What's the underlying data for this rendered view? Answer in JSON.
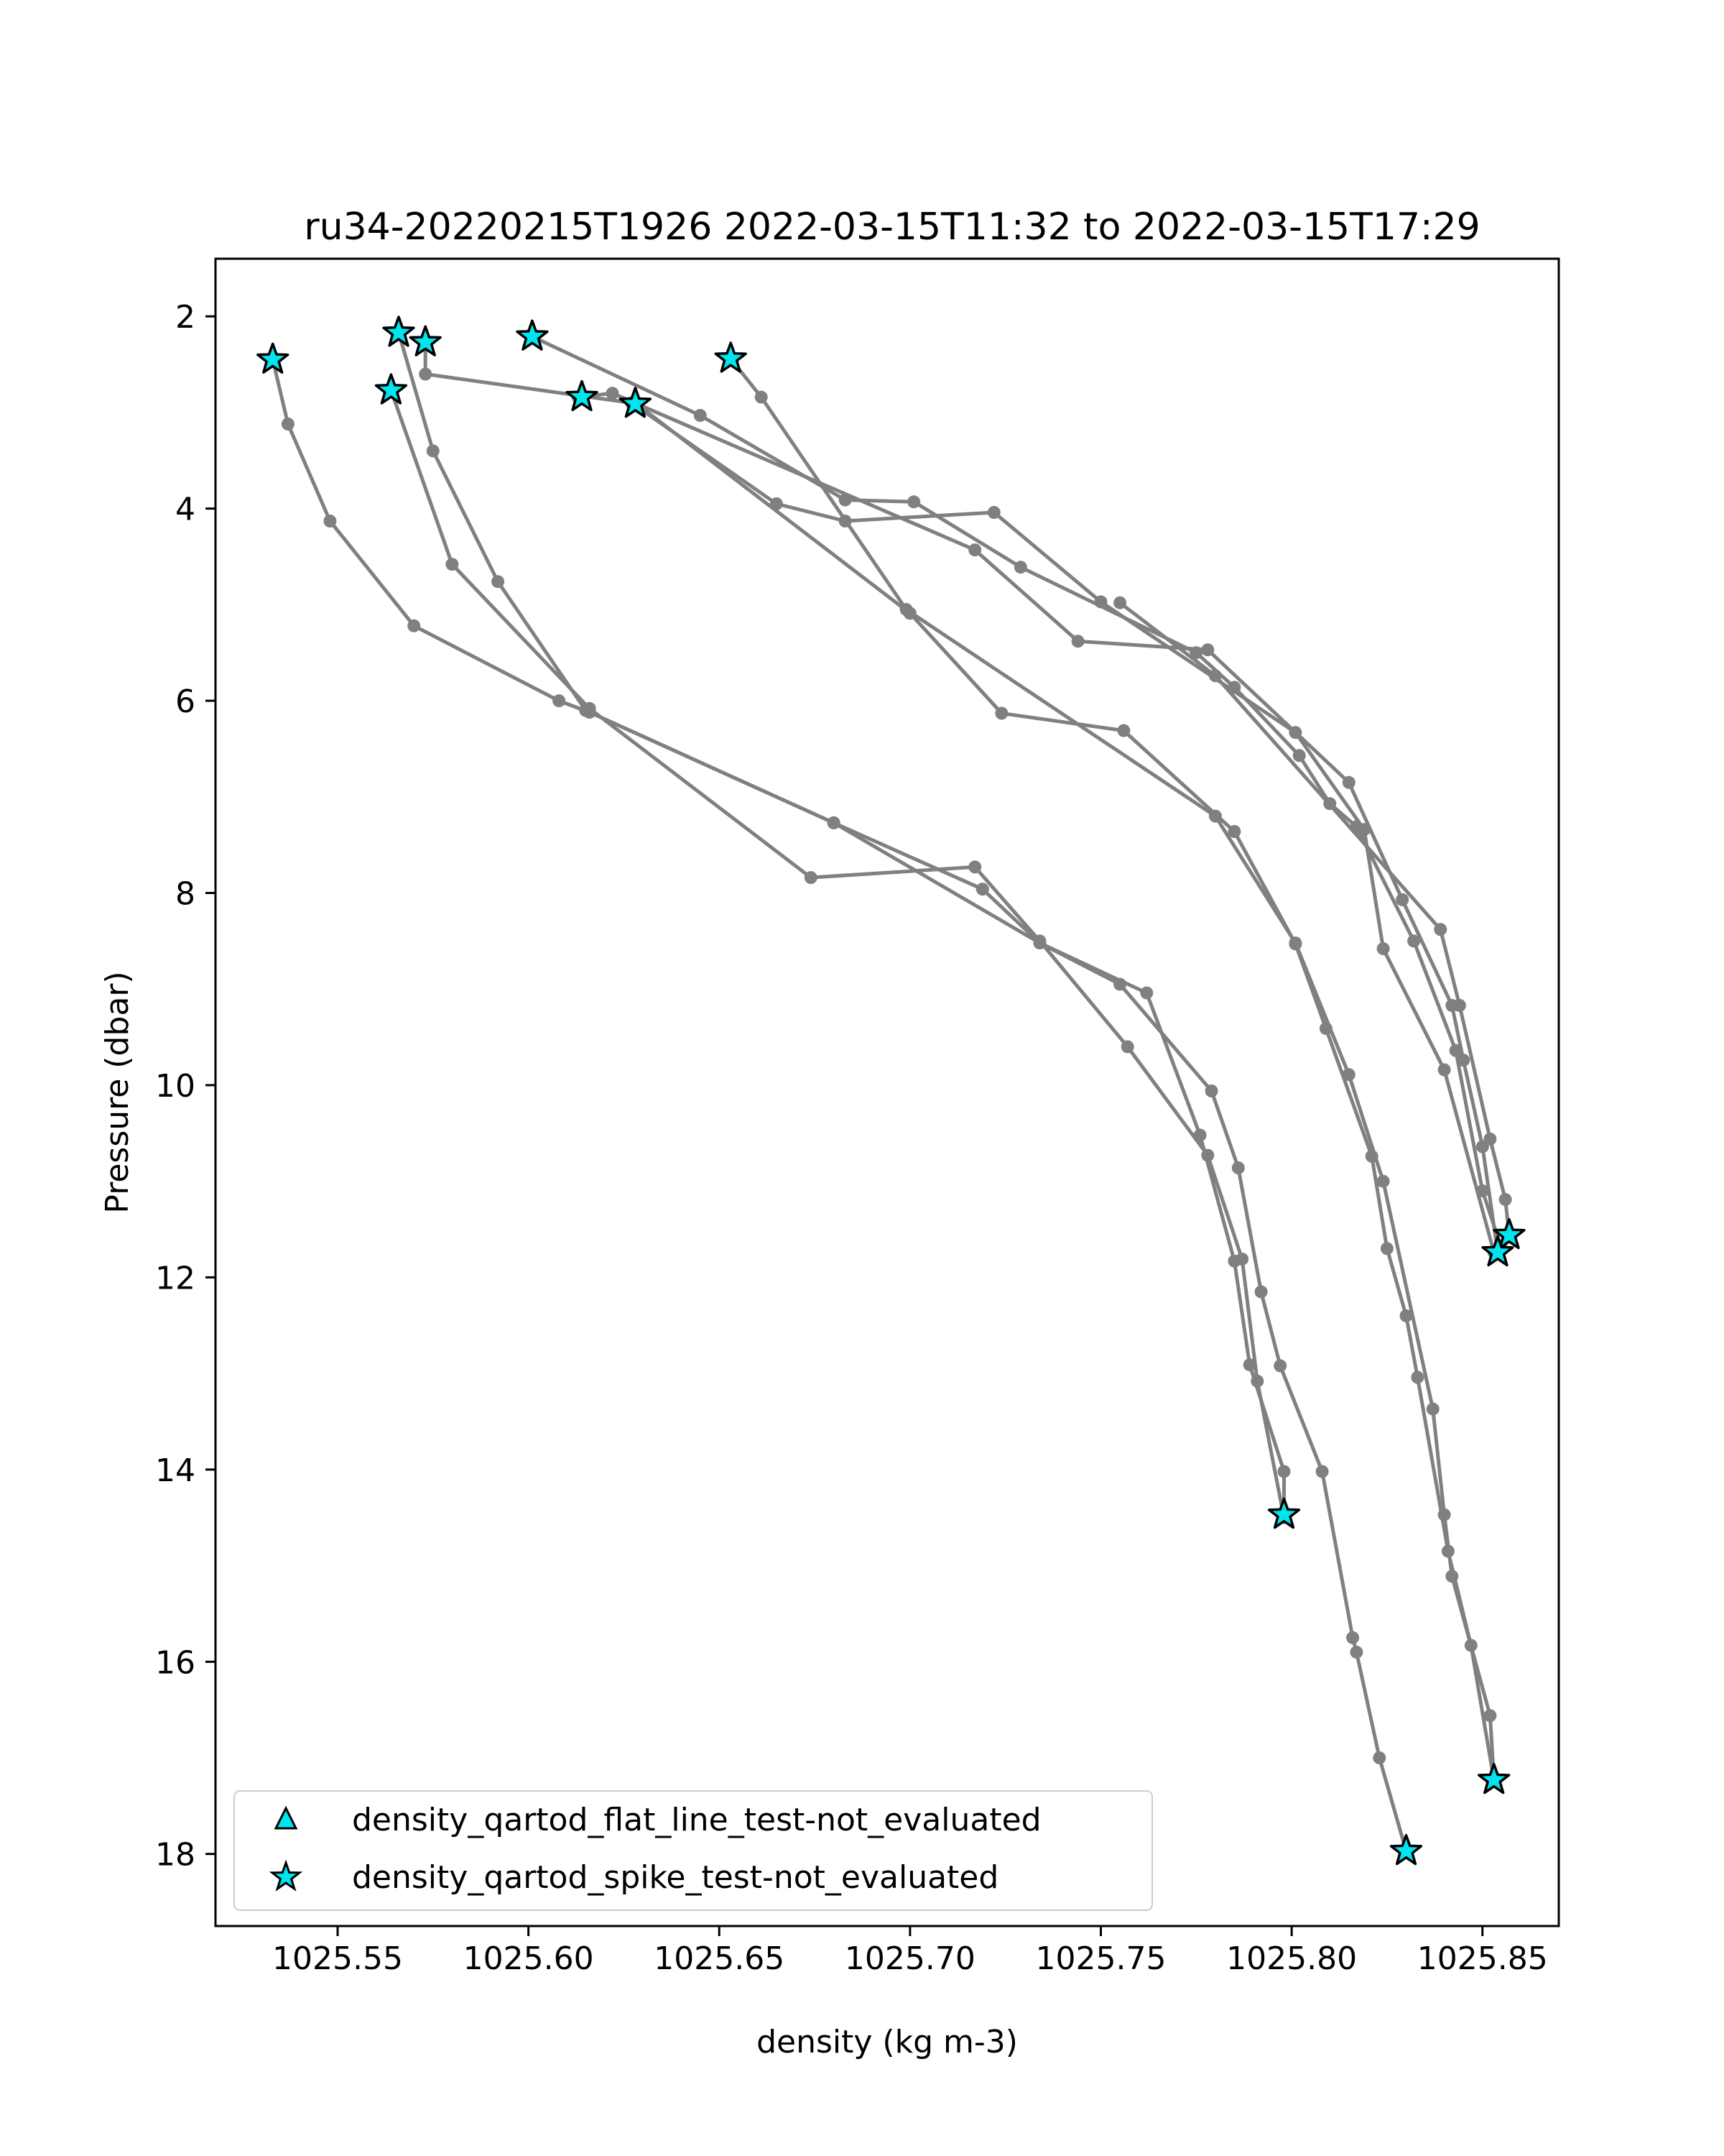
{
  "chart_data": {
    "type": "line",
    "title": "ru34-20220215T1926 2022-03-15T11:32 to 2022-03-15T17:29",
    "xlabel": "density (kg m-3)",
    "ylabel": "Pressure (dbar)",
    "xlim": [
      1025.518,
      1025.87
    ],
    "ylim": [
      18.75,
      1.4
    ],
    "y_inverted": true,
    "xticks": [
      1025.55,
      1025.6,
      1025.65,
      1025.7,
      1025.75,
      1025.8,
      1025.85
    ],
    "xtick_labels": [
      "1025.55",
      "1025.60",
      "1025.65",
      "1025.70",
      "1025.75",
      "1025.80",
      "1025.85"
    ],
    "yticks": [
      2,
      4,
      6,
      8,
      10,
      12,
      14,
      16,
      18
    ],
    "ytick_labels": [
      "2",
      "4",
      "6",
      "8",
      "10",
      "12",
      "14",
      "16",
      "18"
    ],
    "grid": false,
    "line_color": "#808080",
    "marker_fill": "#00e5ee",
    "legend": {
      "placement": "lower-left",
      "entries": [
        {
          "label": "density_qartod_flat_line_test-not_evaluated",
          "marker": "triangle",
          "color": "#00e5ee"
        },
        {
          "label": "density_qartod_spike_test-not_evaluated",
          "marker": "star",
          "color": "#00e5ee"
        }
      ]
    },
    "profiles": [
      {
        "points": [
          [
            1025.533,
            2.45
          ],
          [
            1025.537,
            3.12
          ],
          [
            1025.548,
            4.13
          ],
          [
            1025.57,
            5.22
          ],
          [
            1025.608,
            6.0
          ],
          [
            1025.616,
            6.12
          ],
          [
            1025.68,
            7.27
          ],
          [
            1025.719,
            7.96
          ],
          [
            1025.734,
            8.52
          ],
          [
            1025.762,
            9.04
          ],
          [
            1025.776,
            10.52
          ],
          [
            1025.785,
            11.83
          ],
          [
            1025.789,
            12.91
          ],
          [
            1025.798,
            14.02
          ],
          [
            1025.798,
            14.47
          ]
        ]
      },
      {
        "points": [
          [
            1025.564,
            2.77
          ],
          [
            1025.58,
            4.58
          ],
          [
            1025.616,
            6.08
          ],
          [
            1025.674,
            7.84
          ],
          [
            1025.717,
            7.73
          ],
          [
            1025.734,
            8.5
          ],
          [
            1025.757,
            9.6
          ],
          [
            1025.778,
            10.73
          ],
          [
            1025.787,
            11.81
          ],
          [
            1025.791,
            13.08
          ],
          [
            1025.798,
            14.5
          ]
        ]
      },
      {
        "points": [
          [
            1025.566,
            2.17
          ],
          [
            1025.575,
            3.4
          ],
          [
            1025.592,
            4.76
          ],
          [
            1025.615,
            6.1
          ],
          [
            1025.68,
            7.27
          ],
          [
            1025.734,
            8.52
          ],
          [
            1025.755,
            8.95
          ],
          [
            1025.779,
            10.06
          ],
          [
            1025.786,
            10.86
          ],
          [
            1025.792,
            12.15
          ],
          [
            1025.797,
            12.92
          ],
          [
            1025.808,
            14.02
          ],
          [
            1025.816,
            15.75
          ],
          [
            1025.817,
            15.9
          ],
          [
            1025.823,
            17.0
          ],
          [
            1025.83,
            17.97
          ]
        ]
      },
      {
        "points": [
          [
            1025.573,
            2.27
          ],
          [
            1025.573,
            2.6
          ],
          [
            1025.627,
            2.9
          ],
          [
            1025.665,
            3.95
          ],
          [
            1025.683,
            4.13
          ],
          [
            1025.722,
            4.04
          ],
          [
            1025.75,
            4.97
          ],
          [
            1025.801,
            6.33
          ],
          [
            1025.819,
            7.34
          ],
          [
            1025.824,
            8.58
          ],
          [
            1025.84,
            9.84
          ],
          [
            1025.853,
            11.74
          ]
        ]
      },
      {
        "points": [
          [
            1025.601,
            2.21
          ],
          [
            1025.645,
            3.03
          ],
          [
            1025.683,
            3.91
          ],
          [
            1025.701,
            3.93
          ],
          [
            1025.729,
            4.61
          ],
          [
            1025.775,
            5.5
          ],
          [
            1025.785,
            5.86
          ],
          [
            1025.802,
            6.57
          ],
          [
            1025.81,
            7.07
          ],
          [
            1025.817,
            7.31
          ],
          [
            1025.832,
            8.5
          ],
          [
            1025.843,
            9.64
          ],
          [
            1025.85,
            11.1
          ],
          [
            1025.855,
            11.7
          ]
        ]
      },
      {
        "points": [
          [
            1025.613,
            2.84
          ],
          [
            1025.622,
            2.8
          ],
          [
            1025.717,
            4.43
          ],
          [
            1025.744,
            5.38
          ],
          [
            1025.778,
            5.47
          ],
          [
            1025.815,
            6.85
          ],
          [
            1025.829,
            8.07
          ],
          [
            1025.842,
            9.17
          ],
          [
            1025.845,
            9.74
          ],
          [
            1025.85,
            10.64
          ],
          [
            1025.854,
            11.74
          ]
        ]
      },
      {
        "points": [
          [
            1025.653,
            2.44
          ],
          [
            1025.661,
            2.84
          ],
          [
            1025.699,
            5.05
          ],
          [
            1025.78,
            7.2
          ],
          [
            1025.801,
            8.52
          ],
          [
            1025.815,
            9.89
          ],
          [
            1025.824,
            11.0
          ],
          [
            1025.837,
            13.37
          ],
          [
            1025.84,
            14.47
          ],
          [
            1025.842,
            15.11
          ],
          [
            1025.852,
            16.56
          ],
          [
            1025.853,
            17.23
          ]
        ]
      },
      {
        "points": [
          [
            1025.628,
            2.9
          ],
          [
            1025.7,
            5.09
          ],
          [
            1025.724,
            6.13
          ],
          [
            1025.756,
            6.31
          ],
          [
            1025.785,
            7.36
          ],
          [
            1025.801,
            8.53
          ],
          [
            1025.809,
            9.41
          ],
          [
            1025.821,
            10.74
          ],
          [
            1025.825,
            11.7
          ],
          [
            1025.83,
            12.4
          ],
          [
            1025.833,
            13.04
          ],
          [
            1025.841,
            14.85
          ],
          [
            1025.847,
            15.83
          ],
          [
            1025.853,
            17.23
          ]
        ]
      },
      {
        "points": [
          [
            1025.755,
            4.98
          ],
          [
            1025.78,
            5.74
          ],
          [
            1025.839,
            8.38
          ],
          [
            1025.844,
            9.17
          ],
          [
            1025.852,
            10.56
          ],
          [
            1025.856,
            11.19
          ],
          [
            1025.857,
            11.56
          ]
        ]
      }
    ],
    "spike_markers": [
      [
        1025.533,
        2.45
      ],
      [
        1025.566,
        2.17
      ],
      [
        1025.573,
        2.27
      ],
      [
        1025.601,
        2.21
      ],
      [
        1025.564,
        2.77
      ],
      [
        1025.614,
        2.84
      ],
      [
        1025.628,
        2.91
      ],
      [
        1025.653,
        2.44
      ],
      [
        1025.857,
        11.56
      ],
      [
        1025.854,
        11.74
      ],
      [
        1025.798,
        14.47
      ],
      [
        1025.853,
        17.23
      ],
      [
        1025.83,
        17.97
      ]
    ]
  }
}
